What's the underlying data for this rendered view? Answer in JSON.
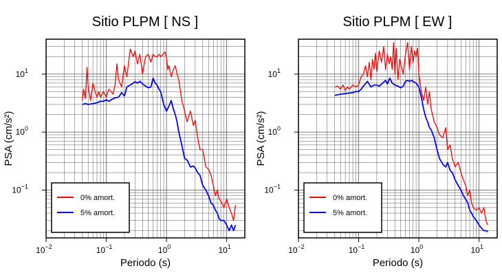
{
  "chart_data": [
    {
      "type": "line",
      "title": "Sitio PLPM [ NS ]",
      "xlabel": "Periodo (s)",
      "ylabel": "PSA (cm/s²)",
      "xscale": "log",
      "yscale": "log",
      "xlim": [
        0.01,
        20
      ],
      "ylim": [
        0.015,
        40
      ],
      "xticks": [
        {
          "value": 0.01,
          "base": "10",
          "exp": "−2"
        },
        {
          "value": 0.1,
          "base": "10",
          "exp": "−1"
        },
        {
          "value": 1,
          "base": "10",
          "exp": "0"
        },
        {
          "value": 10,
          "base": "10",
          "exp": "1"
        }
      ],
      "yticks": [
        {
          "value": 0.1,
          "base": "10",
          "exp": "−1"
        },
        {
          "value": 1,
          "base": "10",
          "exp": "0"
        },
        {
          "value": 10,
          "base": "10",
          "exp": "1"
        }
      ],
      "grid": true,
      "legend_position": "bottom-left",
      "series": [
        {
          "name": "0% amort.",
          "color": "#ff0000",
          "x": [
            0.04,
            0.042,
            0.045,
            0.048,
            0.05,
            0.055,
            0.06,
            0.065,
            0.07,
            0.075,
            0.08,
            0.09,
            0.1,
            0.11,
            0.12,
            0.13,
            0.14,
            0.15,
            0.16,
            0.18,
            0.2,
            0.22,
            0.25,
            0.28,
            0.3,
            0.33,
            0.36,
            0.4,
            0.45,
            0.5,
            0.55,
            0.6,
            0.65,
            0.7,
            0.75,
            0.8,
            0.85,
            0.9,
            0.95,
            1.0,
            1.05,
            1.1,
            1.2,
            1.3,
            1.4,
            1.5,
            1.6,
            1.8,
            2.0,
            2.2,
            2.5,
            2.8,
            3.0,
            3.3,
            3.6,
            4.0,
            4.5,
            5.0,
            5.5,
            6.0,
            6.5,
            7.0,
            7.5,
            8.0,
            9.0,
            10.0,
            11.0,
            12.0,
            13.0,
            14.0
          ],
          "y": [
            3.5,
            5.5,
            3.8,
            13,
            6,
            3.5,
            7,
            5,
            4,
            5,
            4,
            5,
            4,
            5.5,
            5,
            4.5,
            6.5,
            15,
            8,
            6,
            14,
            9,
            27,
            20,
            25,
            15,
            22,
            10,
            20,
            22,
            16,
            22,
            20,
            20,
            22,
            20,
            21,
            23,
            24,
            19,
            12,
            14,
            9,
            12,
            14,
            10,
            8,
            3.5,
            2.3,
            1.5,
            2.3,
            1.3,
            1.6,
            0.8,
            0.5,
            0.5,
            0.25,
            0.23,
            0.18,
            0.12,
            0.08,
            0.1,
            0.07,
            0.065,
            0.05,
            0.07,
            0.05,
            0.04,
            0.03,
            0.055
          ]
        },
        {
          "name": "5% amort.",
          "color": "#0000ff",
          "x": [
            0.04,
            0.045,
            0.05,
            0.06,
            0.07,
            0.08,
            0.09,
            0.1,
            0.11,
            0.12,
            0.14,
            0.16,
            0.18,
            0.2,
            0.22,
            0.25,
            0.28,
            0.3,
            0.33,
            0.36,
            0.4,
            0.45,
            0.5,
            0.55,
            0.6,
            0.65,
            0.7,
            0.75,
            0.8,
            0.9,
            1.0,
            1.1,
            1.2,
            1.3,
            1.4,
            1.5,
            1.6,
            1.8,
            2.0,
            2.2,
            2.5,
            2.8,
            3.0,
            3.3,
            3.6,
            4.0,
            4.5,
            5.0,
            5.5,
            6.0,
            6.5,
            7.0,
            7.5,
            8.0,
            9.0,
            10.0,
            11.0,
            12.0,
            13.0,
            14.0
          ],
          "y": [
            3.0,
            3.1,
            3.0,
            3.1,
            3.2,
            3.4,
            3.4,
            3.6,
            3.4,
            3.6,
            3.9,
            4.0,
            4.8,
            4.2,
            6.0,
            6.5,
            7.0,
            7.4,
            7.0,
            7.5,
            6.8,
            6.2,
            5.8,
            6.0,
            8.5,
            7.0,
            6.5,
            5.5,
            5.0,
            3.0,
            2.3,
            2.8,
            3.5,
            2.5,
            2.0,
            1.5,
            1.0,
            0.6,
            0.35,
            0.33,
            0.25,
            0.26,
            0.24,
            0.2,
            0.18,
            0.12,
            0.1,
            0.08,
            0.06,
            0.055,
            0.045,
            0.04,
            0.032,
            0.03,
            0.03,
            0.025,
            0.02,
            0.025,
            0.02,
            0.025
          ]
        }
      ]
    },
    {
      "type": "line",
      "title": "Sitio PLPM [ EW ]",
      "xlabel": "Periodo (s)",
      "ylabel": "PSA (cm/s²)",
      "xscale": "log",
      "yscale": "log",
      "xlim": [
        0.01,
        20
      ],
      "ylim": [
        0.015,
        40
      ],
      "xticks": [
        {
          "value": 0.01,
          "base": "10",
          "exp": "−2"
        },
        {
          "value": 0.1,
          "base": "10",
          "exp": "−1"
        },
        {
          "value": 1,
          "base": "10",
          "exp": "0"
        },
        {
          "value": 10,
          "base": "10",
          "exp": "1"
        }
      ],
      "yticks": [
        {
          "value": 0.1,
          "base": "10",
          "exp": "−1"
        },
        {
          "value": 1,
          "base": "10",
          "exp": "0"
        },
        {
          "value": 10,
          "base": "10",
          "exp": "1"
        }
      ],
      "grid": true,
      "legend_position": "bottom-left",
      "series": [
        {
          "name": "0% amort.",
          "color": "#ff0000",
          "x": [
            0.04,
            0.045,
            0.05,
            0.055,
            0.06,
            0.065,
            0.07,
            0.08,
            0.09,
            0.1,
            0.11,
            0.12,
            0.13,
            0.14,
            0.15,
            0.16,
            0.17,
            0.18,
            0.19,
            0.2,
            0.22,
            0.24,
            0.26,
            0.28,
            0.3,
            0.32,
            0.34,
            0.36,
            0.38,
            0.4,
            0.42,
            0.45,
            0.48,
            0.5,
            0.55,
            0.6,
            0.65,
            0.7,
            0.75,
            0.8,
            0.85,
            0.9,
            0.95,
            1.0,
            1.1,
            1.2,
            1.3,
            1.4,
            1.5,
            1.6,
            1.8,
            2.0,
            2.2,
            2.5,
            2.8,
            3.0,
            3.3,
            3.6,
            4.0,
            4.5,
            5.0,
            5.5,
            6.0,
            6.5,
            7.0,
            7.5,
            8.0,
            9.0,
            10.0,
            11.0,
            12.0,
            13.0,
            14.0
          ],
          "y": [
            6,
            6.2,
            5.5,
            6.5,
            5.2,
            6,
            5.5,
            6.5,
            6,
            6.5,
            9,
            10,
            14,
            9,
            16,
            8,
            18,
            12,
            23,
            11,
            25,
            16,
            30,
            12,
            22,
            15,
            20,
            12,
            35,
            10,
            28,
            8,
            18,
            15,
            10,
            22,
            35,
            12,
            30,
            16,
            25,
            20,
            28,
            10,
            5,
            3.5,
            6,
            3,
            5,
            2.5,
            1.5,
            1.2,
            0.9,
            0.8,
            1.2,
            0.5,
            0.6,
            0.35,
            0.25,
            0.3,
            0.2,
            0.15,
            0.12,
            0.08,
            0.1,
            0.06,
            0.05,
            0.045,
            0.05,
            0.04,
            0.05,
            0.03,
            0.025
          ]
        },
        {
          "name": "5% amort.",
          "color": "#0000ff",
          "x": [
            0.04,
            0.045,
            0.05,
            0.06,
            0.07,
            0.08,
            0.09,
            0.1,
            0.11,
            0.12,
            0.14,
            0.16,
            0.18,
            0.2,
            0.22,
            0.25,
            0.28,
            0.3,
            0.33,
            0.36,
            0.4,
            0.45,
            0.5,
            0.55,
            0.6,
            0.65,
            0.7,
            0.75,
            0.8,
            0.85,
            0.9,
            1.0,
            1.1,
            1.2,
            1.3,
            1.4,
            1.5,
            1.6,
            1.8,
            2.0,
            2.2,
            2.5,
            2.8,
            3.0,
            3.3,
            3.6,
            4.0,
            4.5,
            5.0,
            5.5,
            6.0,
            6.5,
            7.0,
            7.5,
            8.0,
            9.0,
            10.0,
            11.0,
            12.0,
            13.0,
            14.0
          ],
          "y": [
            4.3,
            4.4,
            4.5,
            4.6,
            4.7,
            4.8,
            5.0,
            5.0,
            5.5,
            6.2,
            7.5,
            6.0,
            6.5,
            6.5,
            6.2,
            7.0,
            7.8,
            6.8,
            8.5,
            7.0,
            6.5,
            6.2,
            5.8,
            6.2,
            7.5,
            7.8,
            7.5,
            7.8,
            7.5,
            7.2,
            7.0,
            6.0,
            4.0,
            2.5,
            1.8,
            1.5,
            1.2,
            1.1,
            0.8,
            0.5,
            0.35,
            0.28,
            0.25,
            0.3,
            0.22,
            0.2,
            0.15,
            0.12,
            0.1,
            0.08,
            0.07,
            0.06,
            0.045,
            0.04,
            0.035,
            0.03,
            0.025,
            0.022,
            0.02,
            0.02,
            0.019
          ]
        }
      ]
    }
  ]
}
